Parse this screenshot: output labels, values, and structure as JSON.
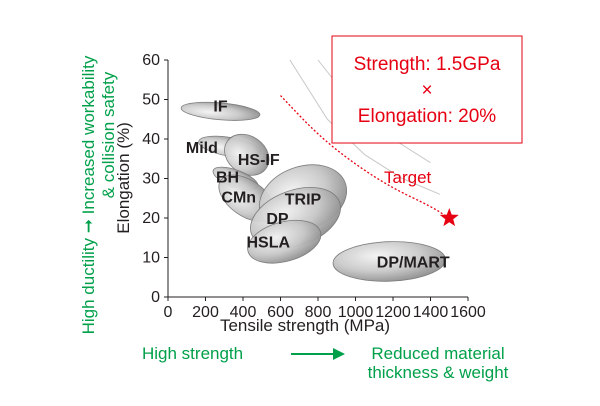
{
  "chart_data": {
    "type": "scatter",
    "xlabel": "Tensile strength (MPa)",
    "ylabel": "Elongation (%)",
    "xlim": [
      0,
      1600
    ],
    "ylim": [
      0,
      60
    ],
    "xticks": [
      0,
      200,
      400,
      600,
      800,
      1000,
      1200,
      1400,
      1600
    ],
    "yticks": [
      0,
      10,
      20,
      30,
      40,
      50,
      60
    ],
    "grid": false,
    "regions": [
      {
        "name": "IF",
        "cx": 280,
        "cy": 47,
        "rx": 45,
        "ry": 10,
        "angle": -85
      },
      {
        "name": "Mild",
        "cx": 330,
        "cy": 38,
        "rx": 50,
        "ry": 8,
        "angle": -80
      },
      {
        "name": "HS-IF",
        "cx": 420,
        "cy": 36,
        "rx": 100,
        "ry": 6,
        "angle": -55
      },
      {
        "name": "BH",
        "cx": 360,
        "cy": 30,
        "rx": 45,
        "ry": 6,
        "angle": -70
      },
      {
        "name": "CMn",
        "cx": 420,
        "cy": 25,
        "rx": 95,
        "ry": 8,
        "angle": -55
      },
      {
        "name": "TRIP",
        "cx": 720,
        "cy": 25,
        "rx": 240,
        "ry": 8,
        "angle": -20
      },
      {
        "name": "DP",
        "cx": 680,
        "cy": 20,
        "rx": 250,
        "ry": 7,
        "angle": -20
      },
      {
        "name": "HSLA",
        "cx": 620,
        "cy": 14,
        "rx": 200,
        "ry": 5,
        "angle": -15
      },
      {
        "name": "DP/MART",
        "cx": 1180,
        "cy": 9,
        "rx": 300,
        "ry": 5,
        "angle": -2
      }
    ],
    "target": {
      "x": 1500,
      "y": 20
    },
    "target_curve": [
      [
        600,
        51
      ],
      [
        800,
        41
      ],
      [
        1000,
        33.5
      ],
      [
        1200,
        27.5
      ],
      [
        1400,
        23
      ],
      [
        1500,
        20
      ]
    ],
    "guide_curves": [
      [
        [
          650,
          60
        ],
        [
          850,
          45
        ],
        [
          1050,
          36
        ],
        [
          1250,
          30
        ],
        [
          1450,
          26
        ]
      ],
      [
        [
          800,
          60
        ],
        [
          1000,
          48
        ],
        [
          1200,
          40
        ],
        [
          1400,
          34
        ]
      ]
    ],
    "annotations": {
      "callout_line1": "Strength: 1.5GPa",
      "callout_symbol": "×",
      "callout_line2": "Elongation: 20%",
      "target_label": "Target",
      "y_side_line1": "High ductility ➞ Increased workability",
      "y_side_line2": "& collision safety",
      "x_bottom_left": "High strength",
      "x_bottom_right_line1": "Reduced material",
      "x_bottom_right_line2": "thickness & weight"
    },
    "colors": {
      "accent_red": "#e60012",
      "accent_green": "#00a04a"
    }
  }
}
